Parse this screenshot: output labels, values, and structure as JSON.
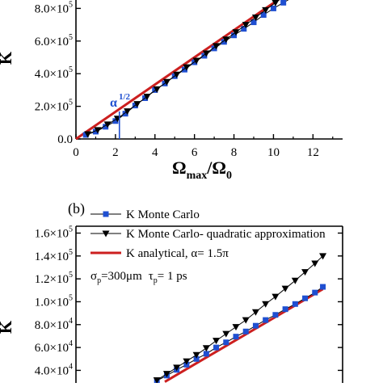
{
  "chart_data": [
    {
      "id": "top",
      "type": "line",
      "xlabel": "Ω_max/Ω_0",
      "xlabel_main": "Ω",
      "xlabel_sub1": "max",
      "xlabel_slash": "/Ω",
      "xlabel_sub2": "0",
      "ylabel": "K",
      "xlim": [
        0,
        13.5
      ],
      "ylim": [
        0,
        1000000
      ],
      "x_ticks": [
        0,
        2,
        4,
        6,
        8,
        10,
        12
      ],
      "x_tick_labels": [
        "0",
        "2",
        "4",
        "6",
        "8",
        "10",
        "12"
      ],
      "y_ticks": [
        0,
        200000,
        400000,
        600000,
        800000
      ],
      "y_tick_labels": [
        {
          "mant": "0.0",
          "exp": ""
        },
        {
          "mant": "2.0×10",
          "exp": "5"
        },
        {
          "mant": "4.0×10",
          "exp": "5"
        },
        {
          "mant": "6.0×10",
          "exp": "5"
        },
        {
          "mant": "8.0×10",
          "exp": "5"
        }
      ],
      "annotation": {
        "text": "α",
        "sup": "1/2",
        "x": 2.2
      },
      "series": [
        {
          "style": "analytical",
          "color": "#cc1f1f",
          "x": [
            0,
            12
          ],
          "y": [
            0,
            1000000
          ]
        },
        {
          "style": "square",
          "color": "#1f4fd1",
          "x": [
            0.5,
            1.0,
            1.5,
            2.0,
            2.5,
            3.0,
            3.5,
            4.0,
            4.5,
            5.0,
            5.5,
            6.0,
            6.5,
            7.0,
            7.5,
            8.0,
            8.5,
            9.0,
            9.5,
            10.0,
            10.5,
            11.0,
            11.5,
            11.9
          ],
          "y": [
            25000,
            45000,
            75000,
            110000,
            155000,
            205000,
            250000,
            300000,
            340000,
            385000,
            425000,
            470000,
            510000,
            555000,
            595000,
            635000,
            675000,
            715000,
            760000,
            800000,
            835000,
            870000,
            905000,
            930000
          ]
        },
        {
          "style": "triangle",
          "color": "#000000",
          "x": [
            0.6,
            1.1,
            1.6,
            2.1,
            2.6,
            3.1,
            3.6,
            4.1,
            4.6,
            5.1,
            5.6,
            6.1,
            6.6,
            7.1,
            7.6,
            8.1,
            8.6,
            9.1,
            9.6,
            10.1,
            10.6,
            11.1
          ],
          "y": [
            30000,
            55000,
            90000,
            125000,
            170000,
            215000,
            260000,
            305000,
            350000,
            395000,
            440000,
            480000,
            525000,
            570000,
            610000,
            655000,
            700000,
            745000,
            790000,
            835000,
            880000,
            925000
          ]
        }
      ]
    },
    {
      "id": "bottom",
      "type": "line",
      "panel_label": "(b)",
      "ylabel": "K",
      "xlim": [
        0,
        13.5
      ],
      "ylim": [
        29000,
        166000
      ],
      "y_ticks": [
        40000,
        60000,
        80000,
        100000,
        120000,
        140000,
        160000
      ],
      "y_tick_labels": [
        {
          "mant": "4.0×10",
          "exp": "4"
        },
        {
          "mant": "6.0×10",
          "exp": "4"
        },
        {
          "mant": "8.0×10",
          "exp": "4"
        },
        {
          "mant": "1.0×10",
          "exp": "5"
        },
        {
          "mant": "1.2×10",
          "exp": "5"
        },
        {
          "mant": "1.4×10",
          "exp": "5"
        },
        {
          "mant": "1.6×10",
          "exp": "5"
        }
      ],
      "legend": [
        {
          "label": "K Monte Carlo",
          "style": "square"
        },
        {
          "label": "K Monte Carlo- quadratic approximation",
          "style": "triangle"
        },
        {
          "label": "K analytical, α= 1.5π",
          "style": "analytical"
        }
      ],
      "params": {
        "sigma_sym": "σ",
        "sigma_sub": "p",
        "sigma_val": "=300μm",
        "tau_sym": "τ",
        "tau_sub": "p",
        "tau_val": "= 1 ps"
      },
      "series": [
        {
          "style": "analytical",
          "color": "#cc1f1f",
          "x": [
            4.5,
            12.5
          ],
          "y": [
            30000,
            111000
          ]
        },
        {
          "style": "square",
          "color": "#1f4fd1",
          "x": [
            4.1,
            4.6,
            5.1,
            5.6,
            6.1,
            6.6,
            7.1,
            7.6,
            8.1,
            8.6,
            9.1,
            9.6,
            10.1,
            10.6,
            11.1,
            11.6,
            12.1,
            12.5
          ],
          "y": [
            31000,
            35500,
            40500,
            45000,
            50000,
            54500,
            60000,
            64500,
            69500,
            74000,
            79000,
            84000,
            88500,
            93500,
            98000,
            103000,
            108000,
            113000
          ]
        },
        {
          "style": "triangle",
          "color": "#000000",
          "x": [
            4.1,
            4.6,
            5.1,
            5.6,
            6.1,
            6.6,
            7.1,
            7.6,
            8.1,
            8.6,
            9.1,
            9.6,
            10.1,
            10.6,
            11.1,
            11.6,
            12.1,
            12.5
          ],
          "y": [
            31500,
            37000,
            42500,
            48000,
            53500,
            59500,
            66000,
            72000,
            78000,
            84000,
            91000,
            98000,
            104500,
            111500,
            118500,
            126000,
            133500,
            140000
          ]
        }
      ]
    }
  ]
}
